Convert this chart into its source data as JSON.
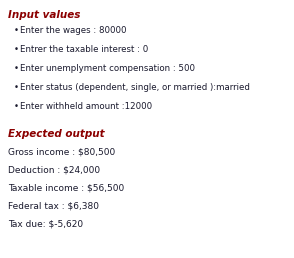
{
  "title": "Input values",
  "title_color": "#8B0000",
  "bullet_items": [
    "Enter the wages : 80000",
    "Entrer the taxable interest : 0",
    "Enter unemplyment compensation : 500",
    "Enter status (dependent, single, or married ):married",
    "Enter withheld amount :12000"
  ],
  "bullet_color": "#1a1a2e",
  "section2_title": "Expected output",
  "section2_title_color": "#8B0000",
  "output_lines": [
    "Gross income : $80,500",
    "Deduction : $24,000",
    "Taxable income : $56,500",
    "Federal tax : $6,380",
    "Tax due: $-5,620"
  ],
  "output_color": "#1a1a2e",
  "bg_color": "#ffffff",
  "font_size_title": 7.5,
  "font_size_bullet": 6.2,
  "font_size_output": 6.5
}
